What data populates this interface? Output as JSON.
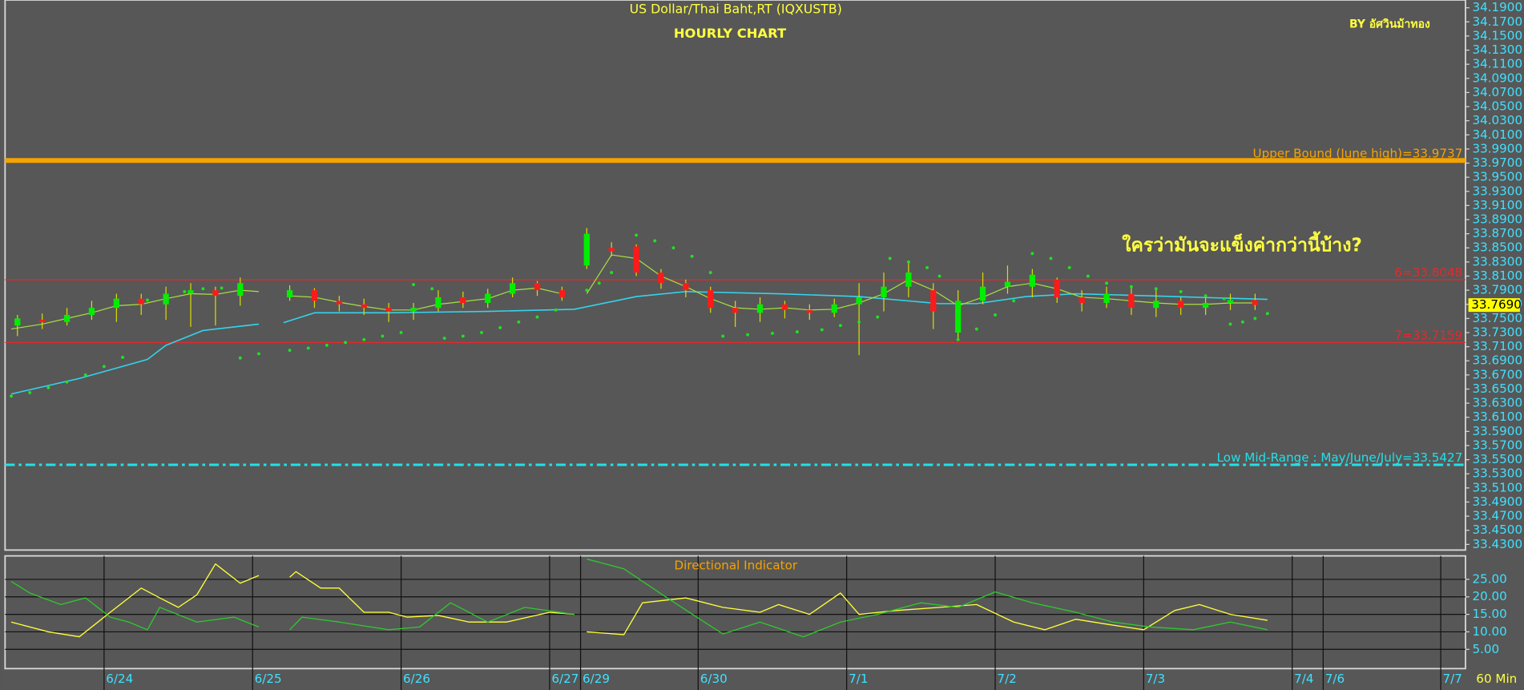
{
  "chart_data": [
    {
      "type": "candlestick",
      "title": "US Dollar/Thai Baht,RT (IQXUSTB)",
      "subtitle": "HOURLY CHART",
      "author": "BY อัศวินม้าทอง",
      "annotation": "ใครว่ามันจะแข็งค่ากว่านี้บ้าง?",
      "xlim": [
        0,
        236
      ],
      "ylim": [
        33.422,
        34.201
      ],
      "yticks": [
        {
          "value": 34.19,
          "label": "34.1900"
        },
        {
          "value": 34.17,
          "label": "34.1700"
        },
        {
          "value": 34.15,
          "label": "34.1500"
        },
        {
          "value": 34.13,
          "label": "34.1300"
        },
        {
          "value": 34.11,
          "label": "34.1100"
        },
        {
          "value": 34.09,
          "label": "34.0900"
        },
        {
          "value": 34.07,
          "label": "34.0700"
        },
        {
          "value": 34.05,
          "label": "34.0500"
        },
        {
          "value": 34.03,
          "label": "34.0300"
        },
        {
          "value": 34.01,
          "label": "34.0100"
        },
        {
          "value": 33.99,
          "label": "33.9900"
        },
        {
          "value": 33.97,
          "label": "33.9700"
        },
        {
          "value": 33.95,
          "label": "33.9500"
        },
        {
          "value": 33.93,
          "label": "33.9300"
        },
        {
          "value": 33.91,
          "label": "33.9100"
        },
        {
          "value": 33.89,
          "label": "33.8900"
        },
        {
          "value": 33.87,
          "label": "33.8700"
        },
        {
          "value": 33.85,
          "label": "33.8500"
        },
        {
          "value": 33.83,
          "label": "33.8300"
        },
        {
          "value": 33.81,
          "label": "33.8100"
        },
        {
          "value": 33.79,
          "label": "33.7900"
        },
        {
          "value": 33.77,
          "label": "33.7700"
        },
        {
          "value": 33.75,
          "label": "33.7500"
        },
        {
          "value": 33.73,
          "label": "33.7300"
        },
        {
          "value": 33.71,
          "label": "33.7100"
        },
        {
          "value": 33.69,
          "label": "33.6900"
        },
        {
          "value": 33.67,
          "label": "33.6700"
        },
        {
          "value": 33.65,
          "label": "33.6500"
        },
        {
          "value": 33.63,
          "label": "33.6300"
        },
        {
          "value": 33.61,
          "label": "33.6100"
        },
        {
          "value": 33.59,
          "label": "33.5900"
        },
        {
          "value": 33.57,
          "label": "33.5700"
        },
        {
          "value": 33.55,
          "label": "33.5500"
        },
        {
          "value": 33.53,
          "label": "33.5300"
        },
        {
          "value": 33.51,
          "label": "33.5100"
        },
        {
          "value": 33.49,
          "label": "33.4900"
        },
        {
          "value": 33.47,
          "label": "33.4700"
        },
        {
          "value": 33.45,
          "label": "33.4500"
        },
        {
          "value": 33.43,
          "label": "33.4300"
        }
      ],
      "candles": {
        "up_color": "#00ee00",
        "down_color": "#ff1a1a",
        "wick_color": "#dcdc00",
        "x": [
          2,
          6,
          10,
          14,
          18,
          22,
          26,
          30,
          34,
          38,
          46,
          50,
          54,
          58,
          62,
          66,
          70,
          74,
          78,
          82,
          86,
          90,
          94,
          98,
          102,
          106,
          110,
          114,
          118,
          122,
          126,
          130,
          134,
          138,
          142,
          146,
          150,
          154,
          158,
          162,
          166,
          170,
          174,
          178,
          182,
          186,
          190,
          194,
          198,
          202
        ],
        "open": [
          33.74,
          33.748,
          33.745,
          33.755,
          33.765,
          33.778,
          33.77,
          33.785,
          33.79,
          33.782,
          33.78,
          33.79,
          33.775,
          33.77,
          33.765,
          33.76,
          33.765,
          33.78,
          33.772,
          33.785,
          33.8,
          33.79,
          33.825,
          33.85,
          33.852,
          33.815,
          33.8,
          33.79,
          33.765,
          33.758,
          33.77,
          33.762,
          33.758,
          33.77,
          33.78,
          33.795,
          33.79,
          33.73,
          33.775,
          33.795,
          33.795,
          33.805,
          33.78,
          33.772,
          33.785,
          33.765,
          33.775,
          33.765,
          33.772,
          33.776
        ],
        "high": [
          33.755,
          33.757,
          33.765,
          33.775,
          33.785,
          33.785,
          33.795,
          33.8,
          33.795,
          33.808,
          33.797,
          33.793,
          33.782,
          33.778,
          33.772,
          33.772,
          33.79,
          33.788,
          33.792,
          33.808,
          33.803,
          33.795,
          33.878,
          33.858,
          33.855,
          33.82,
          33.805,
          33.795,
          33.775,
          33.78,
          33.775,
          33.77,
          33.778,
          33.8,
          33.815,
          33.828,
          33.8,
          33.79,
          33.815,
          33.825,
          33.82,
          33.808,
          33.79,
          33.795,
          33.795,
          33.79,
          33.78,
          33.782,
          33.785,
          33.785
        ],
        "low": [
          33.725,
          33.735,
          33.74,
          33.748,
          33.745,
          33.755,
          33.748,
          33.738,
          33.74,
          33.768,
          33.775,
          33.765,
          33.76,
          33.755,
          33.745,
          33.748,
          33.76,
          33.765,
          33.765,
          33.78,
          33.782,
          33.775,
          33.82,
          33.838,
          33.81,
          33.792,
          33.78,
          33.758,
          33.738,
          33.745,
          33.75,
          33.748,
          33.752,
          33.698,
          33.76,
          33.78,
          33.735,
          33.72,
          33.77,
          33.785,
          33.78,
          33.772,
          33.76,
          33.765,
          33.755,
          33.752,
          33.755,
          33.755,
          33.762,
          33.762
        ],
        "close": [
          33.75,
          33.745,
          33.755,
          33.765,
          33.778,
          33.77,
          33.785,
          33.79,
          33.782,
          33.8,
          33.79,
          33.775,
          33.77,
          33.765,
          33.76,
          33.765,
          33.78,
          33.772,
          33.785,
          33.8,
          33.79,
          33.78,
          33.87,
          33.845,
          33.815,
          33.8,
          33.79,
          33.765,
          33.758,
          33.77,
          33.762,
          33.758,
          33.77,
          33.78,
          33.795,
          33.815,
          33.76,
          33.775,
          33.795,
          33.802,
          33.812,
          33.78,
          33.772,
          33.785,
          33.765,
          33.775,
          33.765,
          33.772,
          33.776,
          33.769
        ]
      },
      "lines": [
        {
          "color": "#33d4ec",
          "x": [
            1,
            12,
            23,
            26,
            32,
            41,
            43,
            45,
            50,
            62,
            78,
            92,
            102,
            110,
            125,
            138,
            151,
            157,
            165,
            173,
            189,
            204
          ],
          "values": [
            33.643,
            33.665,
            33.692,
            33.712,
            33.733,
            33.742,
            null,
            33.744,
            33.758,
            33.758,
            33.76,
            33.763,
            33.781,
            33.788,
            33.785,
            33.781,
            33.771,
            33.771,
            33.781,
            33.785,
            33.781,
            33.777
          ]
        },
        {
          "color": "#a8e040",
          "x": [
            1,
            6,
            10,
            14,
            18,
            22,
            26,
            30,
            34,
            38,
            41,
            43,
            46,
            50,
            54,
            58,
            62,
            66,
            70,
            74,
            78,
            82,
            86,
            90,
            92,
            94,
            98,
            102,
            106,
            110,
            114,
            118,
            122,
            126,
            130,
            134,
            138,
            142,
            146,
            150,
            154,
            158,
            162,
            166,
            170,
            174,
            178,
            182,
            186,
            190,
            194,
            198,
            202
          ],
          "values": [
            33.735,
            33.742,
            33.75,
            33.758,
            33.768,
            33.77,
            33.778,
            33.785,
            33.784,
            33.79,
            33.788,
            null,
            33.782,
            33.78,
            33.773,
            33.767,
            33.762,
            33.762,
            33.77,
            33.774,
            33.778,
            33.79,
            33.793,
            33.785,
            null,
            33.785,
            33.84,
            33.835,
            33.81,
            33.795,
            33.778,
            33.765,
            33.763,
            33.765,
            33.762,
            33.763,
            33.772,
            33.785,
            33.805,
            33.79,
            33.768,
            33.78,
            33.795,
            33.8,
            33.792,
            33.78,
            33.778,
            33.775,
            33.772,
            33.77,
            33.77,
            33.772,
            33.772
          ]
        }
      ],
      "sar": {
        "color": "#22e022",
        "x": [
          1,
          4,
          7,
          10,
          13,
          16,
          19,
          23,
          26,
          29,
          32,
          35,
          38,
          41,
          46,
          49,
          52,
          55,
          58,
          61,
          64,
          66,
          69,
          71,
          74,
          77,
          80,
          83,
          86,
          89,
          94,
          96,
          98,
          102,
          105,
          108,
          111,
          114,
          116,
          120,
          124,
          128,
          132,
          135,
          138,
          141,
          143,
          146,
          149,
          151,
          154,
          157,
          160,
          163,
          166,
          169,
          172,
          175,
          178,
          182,
          186,
          190,
          194,
          197,
          198,
          200,
          202,
          204
        ],
        "values": [
          33.64,
          33.645,
          33.652,
          33.66,
          33.67,
          33.682,
          33.695,
          33.776,
          33.78,
          33.788,
          33.792,
          33.793,
          33.694,
          33.7,
          33.705,
          33.708,
          33.712,
          33.716,
          33.72,
          33.725,
          33.73,
          33.798,
          33.792,
          33.722,
          33.725,
          33.73,
          33.737,
          33.745,
          33.752,
          33.762,
          33.79,
          33.8,
          33.815,
          33.868,
          33.86,
          33.85,
          33.838,
          33.815,
          33.725,
          33.727,
          33.729,
          33.731,
          33.734,
          33.74,
          33.745,
          33.752,
          33.835,
          33.83,
          33.822,
          33.81,
          33.72,
          33.735,
          33.755,
          33.775,
          33.842,
          33.835,
          33.822,
          33.81,
          33.8,
          33.795,
          33.792,
          33.788,
          33.782,
          33.778,
          33.742,
          33.745,
          33.75,
          33.757
        ]
      },
      "levels": [
        {
          "label": "Upper Bound (June high)=33.9737",
          "value": 33.9737,
          "color": "#f5a300",
          "style": "thick"
        },
        {
          "label": "6=33.8048",
          "value": 33.8048,
          "color": "#e8282a",
          "style": "thin"
        },
        {
          "label": "7=33.7159",
          "value": 33.7159,
          "color": "#e8282a",
          "style": "thin"
        },
        {
          "label": "Low Mid-Range : May/June/July=33.5427",
          "value": 33.5427,
          "color": "#22e0e8",
          "style": "dash-dot"
        }
      ],
      "last_price": {
        "value": 33.769,
        "label": "33.7690"
      }
    },
    {
      "type": "line",
      "title": "Directional Indicator",
      "interval": "60 Min",
      "xlim": [
        0,
        236
      ],
      "xticks": [
        {
          "value": 16,
          "label": "6/24"
        },
        {
          "value": 40,
          "label": "6/25"
        },
        {
          "value": 64,
          "label": "6/26"
        },
        {
          "value": 88,
          "label": "6/27"
        },
        {
          "value": 93,
          "label": "6/29"
        },
        {
          "value": 112,
          "label": "6/30"
        },
        {
          "value": 136,
          "label": "7/1"
        },
        {
          "value": 160,
          "label": "7/2"
        },
        {
          "value": 184,
          "label": "7/3"
        },
        {
          "value": 208,
          "label": "7/4"
        },
        {
          "value": 213,
          "label": "7/6"
        },
        {
          "value": 232,
          "label": "7/7"
        }
      ],
      "ylim": [
        -0.5,
        31.7
      ],
      "yticks": [
        {
          "value": 25,
          "label": "25.00"
        },
        {
          "value": 20,
          "label": "20.00"
        },
        {
          "value": 15,
          "label": "15.00"
        },
        {
          "value": 10,
          "label": "10.00"
        },
        {
          "value": 5,
          "label": "5.00"
        }
      ],
      "series": [
        {
          "color": "#ffff3c",
          "x": [
            1,
            7,
            12,
            17,
            22,
            25,
            28,
            31,
            34,
            38,
            41,
            43,
            46,
            47,
            51,
            54,
            58,
            62,
            65,
            70,
            75,
            81,
            88,
            92,
            93,
            94,
            100,
            103,
            110,
            116,
            122,
            125,
            130,
            135,
            138,
            144,
            151,
            157,
            163,
            168,
            173,
            178,
            184,
            189,
            193,
            198,
            204
          ],
          "values": [
            12.8,
            10,
            8.6,
            15.6,
            22.5,
            19.7,
            17,
            20.6,
            29.4,
            23.9,
            26.1,
            null,
            25.6,
            27.2,
            22.5,
            22.5,
            15.6,
            15.6,
            14.2,
            14.7,
            12.8,
            12.8,
            15.6,
            15,
            null,
            10,
            9.2,
            18.3,
            19.7,
            17,
            15.6,
            17.8,
            15,
            21.1,
            15,
            16.1,
            17,
            17.8,
            12.8,
            10.6,
            13.6,
            12.2,
            10.6,
            16.1,
            17.8,
            15,
            13.3
          ]
        },
        {
          "color": "#2ec82e",
          "x": [
            1,
            4,
            9,
            13,
            17,
            20,
            23,
            25,
            31,
            37,
            41,
            43,
            46,
            48,
            54,
            62,
            67,
            72,
            78,
            84,
            92,
            93,
            94,
            100,
            107,
            113,
            116,
            122,
            129,
            135,
            141,
            148,
            154,
            160,
            166,
            173,
            179,
            185,
            192,
            198,
            204
          ],
          "values": [
            24.4,
            21.1,
            17.8,
            19.7,
            14.2,
            12.8,
            10.6,
            17,
            12.8,
            14.2,
            11.4,
            null,
            10.6,
            14.2,
            12.8,
            10.6,
            11.4,
            18.3,
            12.8,
            17,
            15,
            null,
            30.8,
            28,
            19.7,
            12.8,
            9.4,
            12.8,
            8.6,
            12.8,
            15,
            18.3,
            17,
            21.4,
            18.3,
            15.6,
            12.8,
            11.4,
            10.6,
            12.8,
            10.6
          ]
        }
      ]
    }
  ]
}
